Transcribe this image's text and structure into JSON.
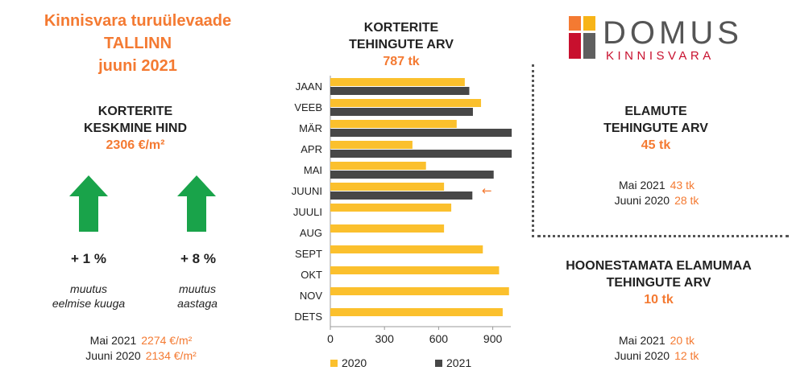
{
  "header": {
    "line1": "Kinnisvara turuülevaade",
    "line2": "TALLINN",
    "line3": "juuni 2021"
  },
  "price": {
    "title_line1": "KORTERITE",
    "title_line2": "KESKMINE HIND",
    "value": "2306 €/m²",
    "month_change": "+ 1 %",
    "month_label_line1": "muutus",
    "month_label_line2": "eelmise kuuga",
    "year_change": "+ 8 %",
    "year_label_line1": "muutus",
    "year_label_line2": "aastaga",
    "cmp": [
      {
        "label": "Mai 2021",
        "value": "2274 €/m²"
      },
      {
        "label": "Juuni 2020",
        "value": "2134 €/m²"
      }
    ],
    "arrow_color": "#19a34a"
  },
  "chart_title": {
    "line1": "KORTERITE",
    "line2": "TEHINGUTE ARV",
    "value": "787 tk"
  },
  "chart_data": {
    "type": "bar",
    "orientation": "horizontal",
    "categories": [
      "JAAN",
      "VEEB",
      "MÄR",
      "APR",
      "MAI",
      "JUUNI",
      "JUULI",
      "AUG",
      "SEPT",
      "OKT",
      "NOV",
      "DETS"
    ],
    "series": [
      {
        "name": "2020",
        "color": "#fbc02d",
        "values": [
          745,
          835,
          700,
          455,
          530,
          630,
          670,
          630,
          845,
          935,
          990,
          955
        ]
      },
      {
        "name": "2021",
        "color": "#474747",
        "values": [
          770,
          790,
          1005,
          1005,
          905,
          787,
          null,
          null,
          null,
          null,
          null,
          null
        ]
      }
    ],
    "xlim": [
      0,
      1000
    ],
    "xticks": [
      0,
      300,
      600,
      900
    ],
    "legend_position": "bottom",
    "annotation": {
      "symbol": "←",
      "category": "JUUNI",
      "color": "#f47a32"
    }
  },
  "logo": {
    "word": "DOMUS",
    "sub": "KINNISVARA",
    "colors": [
      "#f47a32",
      "#f7b418",
      "#c8102e",
      "#5f5f5f"
    ]
  },
  "houses": {
    "title_line1": "ELAMUTE",
    "title_line2": "TEHINGUTE ARV",
    "value": "45 tk",
    "cmp": [
      {
        "label": "Mai 2021",
        "value": "43 tk"
      },
      {
        "label": "Juuni 2020",
        "value": "28 tk"
      }
    ]
  },
  "land": {
    "title_line1": "HOONESTAMATA ELAMUMAA",
    "title_line2": "TEHINGUTE ARV",
    "value": "10 tk",
    "cmp": [
      {
        "label": "Mai 2021",
        "value": "20 tk"
      },
      {
        "label": "Juuni 2020",
        "value": "12 tk"
      }
    ]
  }
}
